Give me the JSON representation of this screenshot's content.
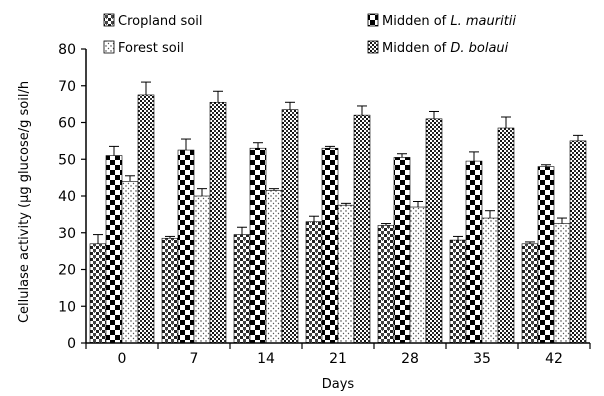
{
  "chart_data": {
    "type": "bar",
    "xlabel": "Days",
    "ylabel": "Cellulase activity (µg glucose/g soil/h",
    "ylim": [
      0,
      80
    ],
    "yticks": [
      0,
      10,
      20,
      30,
      40,
      50,
      60,
      70,
      80
    ],
    "categories": [
      "0",
      "7",
      "14",
      "21",
      "28",
      "35",
      "42"
    ],
    "series": [
      {
        "name": "Cropland soil",
        "values": [
          27,
          28.5,
          29.5,
          33,
          32,
          28,
          27
        ],
        "errors": [
          2.5,
          0.5,
          2,
          1.5,
          0.5,
          1,
          0.5
        ]
      },
      {
        "name_prefix": "Midden of ",
        "name_em": "L. mauritii",
        "values": [
          51,
          52.5,
          53,
          53,
          50.5,
          49.5,
          48
        ],
        "errors": [
          2.5,
          3,
          1.5,
          0.5,
          1,
          2.5,
          0.5
        ]
      },
      {
        "name": "Forest soil",
        "values": [
          44,
          40,
          41.5,
          37.5,
          37,
          34,
          32.5
        ],
        "errors": [
          1.5,
          2,
          0.5,
          0.5,
          1.5,
          2,
          1.5
        ]
      },
      {
        "name_prefix": "Midden of ",
        "name_em": "D. bolaui",
        "values": [
          67.5,
          65.5,
          63.5,
          62,
          61,
          58.5,
          55
        ],
        "errors": [
          3.5,
          3,
          2,
          2.5,
          2,
          3,
          1.5
        ]
      }
    ],
    "legend_position": "top",
    "grid": false
  }
}
